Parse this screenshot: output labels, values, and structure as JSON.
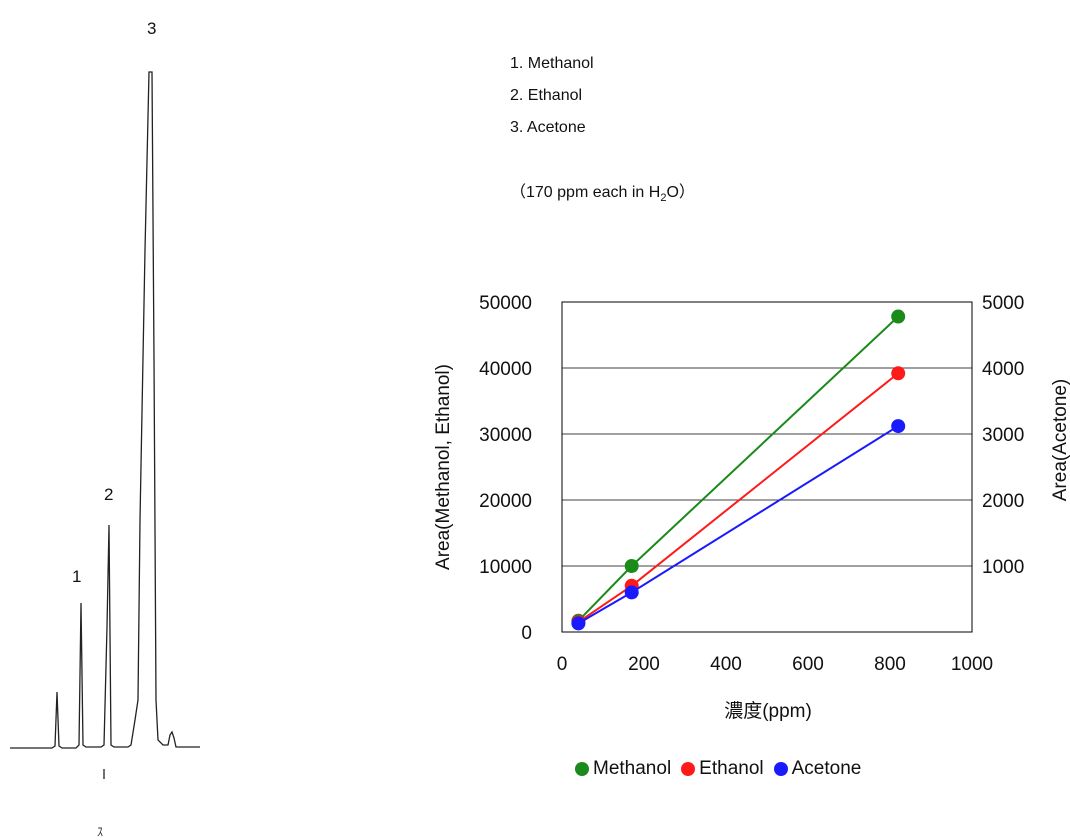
{
  "peaks": {
    "labels": [
      "1",
      "2",
      "3"
    ],
    "names": [
      "1. Methanol",
      "2. Ethanol",
      "3. Acetone"
    ],
    "concentration_note_prefix": "（170 ppm each in H",
    "concentration_note_sub": "2",
    "concentration_note_suffix": "O）",
    "injection_mark": "ｽ"
  },
  "colors": {
    "methanol": "#1a8a1a",
    "ethanol": "#ff1a1a",
    "acetone": "#1a1aff",
    "trace": "#222222",
    "grid": "#000000"
  },
  "chart_data": [
    {
      "type": "line",
      "title": "",
      "subtitle": "",
      "xlabel": "濃度(ppm)",
      "ylabel": "Area(Methanol, Ethanol)",
      "y2label": "Area(Acetone)",
      "xlim": [
        0,
        1000
      ],
      "ylim": [
        0,
        50000
      ],
      "y2lim": [
        0,
        5000
      ],
      "x_ticks": [
        "0",
        "200",
        "400",
        "600",
        "800",
        "1000"
      ],
      "y_ticks": [
        "0",
        "10000",
        "20000",
        "30000",
        "40000",
        "50000"
      ],
      "y2_ticks": [
        "1000",
        "2000",
        "3000",
        "4000",
        "5000"
      ],
      "grid": true,
      "legend": "bottom",
      "series": [
        {
          "name": "Methanol",
          "axis": "left",
          "x": [
            40,
            170,
            820
          ],
          "y": [
            1700,
            10000,
            47800
          ]
        },
        {
          "name": "Ethanol",
          "axis": "left",
          "x": [
            40,
            170,
            820
          ],
          "y": [
            1500,
            7000,
            39200
          ]
        },
        {
          "name": "Acetone",
          "axis": "right",
          "x": [
            40,
            170,
            820
          ],
          "y": [
            130,
            600,
            3120
          ]
        }
      ]
    }
  ]
}
